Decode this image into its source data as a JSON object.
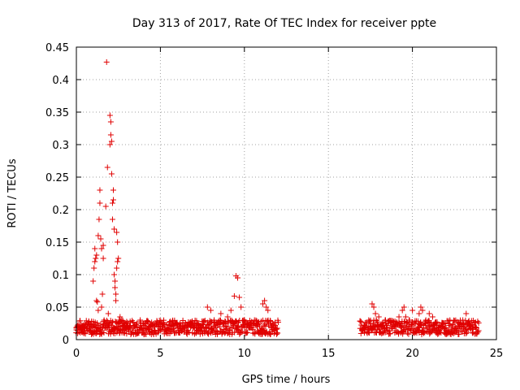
{
  "chart_data": {
    "type": "scatter",
    "title": "Day 313 of 2017, Rate Of TEC Index for receiver ppte",
    "xlabel": "GPS time / hours",
    "ylabel": "ROTI / TECUs",
    "xlim": [
      0,
      25
    ],
    "ylim": [
      0,
      0.45
    ],
    "xticks": [
      0,
      5,
      10,
      15,
      20,
      25
    ],
    "xtick_labels": [
      "0",
      "5",
      "10",
      "15",
      "20",
      "25"
    ],
    "yticks": [
      0,
      0.05,
      0.1,
      0.15,
      0.2,
      0.25,
      0.3,
      0.35,
      0.4,
      0.45
    ],
    "ytick_labels": [
      "0",
      "0.05",
      "0.1",
      "0.15",
      "0.2",
      "0.25",
      "0.3",
      "0.35",
      "0.4",
      "0.45"
    ],
    "grid": true,
    "legend": "none",
    "marker": "plus",
    "color": "#e00000",
    "series": [
      {
        "x": [
          0.0,
          0.1,
          0.2,
          0.3,
          0.4,
          0.5,
          0.6,
          0.7,
          0.8,
          0.9,
          1.0,
          1.0,
          1.05,
          1.1,
          1.1,
          1.15,
          1.2,
          1.2,
          1.25,
          1.3,
          1.3,
          1.35,
          1.4,
          1.4,
          1.45,
          1.5,
          1.5,
          1.55,
          1.6,
          1.6,
          1.65,
          1.7,
          1.75,
          1.8,
          1.85,
          1.9,
          1.95,
          2.0,
          2.0,
          2.05,
          2.05,
          2.1,
          2.1,
          2.15,
          2.15,
          2.2,
          2.2,
          2.25,
          2.25,
          2.3,
          2.3,
          2.35,
          2.35,
          2.4,
          2.4,
          2.45,
          2.45,
          2.5,
          2.5,
          2.55,
          2.6,
          2.6,
          2.7,
          2.8,
          2.9,
          3.0,
          3.2,
          3.4,
          3.6,
          3.8,
          4.0,
          4.2,
          4.4,
          4.6,
          4.8,
          5.0,
          5.2,
          5.4,
          5.6,
          5.8,
          6.0,
          6.2,
          6.4,
          6.6,
          6.8,
          7.0,
          7.2,
          7.4,
          7.6,
          7.8,
          8.0,
          8.2,
          8.4,
          8.6,
          8.8,
          9.0,
          9.2,
          9.4,
          9.5,
          9.6,
          9.7,
          9.8,
          10.0,
          10.2,
          10.4,
          10.6,
          10.8,
          11.0,
          11.1,
          11.2,
          11.3,
          11.4,
          11.6,
          11.8,
          17.0,
          17.2,
          17.4,
          17.6,
          17.7,
          17.8,
          18.0,
          18.2,
          18.4,
          18.6,
          18.8,
          19.0,
          19.2,
          19.4,
          19.5,
          19.6,
          19.8,
          20.0,
          20.2,
          20.4,
          20.5,
          20.6,
          20.8,
          21.0,
          21.2,
          21.4,
          21.6,
          21.8,
          22.0,
          22.2,
          22.4,
          22.6,
          22.8,
          23.0,
          23.2,
          23.4,
          23.6,
          23.8
        ],
        "y": [
          0.015,
          0.02,
          0.018,
          0.016,
          0.022,
          0.019,
          0.017,
          0.024,
          0.02,
          0.028,
          0.02,
          0.09,
          0.11,
          0.12,
          0.14,
          0.125,
          0.13,
          0.06,
          0.058,
          0.045,
          0.16,
          0.185,
          0.21,
          0.23,
          0.155,
          0.14,
          0.05,
          0.07,
          0.145,
          0.125,
          0.03,
          0.025,
          0.205,
          0.427,
          0.265,
          0.04,
          0.025,
          0.3,
          0.345,
          0.335,
          0.315,
          0.305,
          0.255,
          0.185,
          0.21,
          0.215,
          0.23,
          0.17,
          0.1,
          0.09,
          0.08,
          0.07,
          0.06,
          0.11,
          0.165,
          0.15,
          0.12,
          0.125,
          0.02,
          0.03,
          0.035,
          0.025,
          0.03,
          0.022,
          0.025,
          0.02,
          0.028,
          0.018,
          0.025,
          0.03,
          0.022,
          0.018,
          0.024,
          0.02,
          0.026,
          0.02,
          0.024,
          0.018,
          0.02,
          0.022,
          0.026,
          0.02,
          0.018,
          0.022,
          0.019,
          0.02,
          0.024,
          0.022,
          0.028,
          0.05,
          0.045,
          0.03,
          0.025,
          0.04,
          0.025,
          0.035,
          0.045,
          0.067,
          0.098,
          0.095,
          0.065,
          0.05,
          0.03,
          0.025,
          0.022,
          0.03,
          0.025,
          0.028,
          0.055,
          0.06,
          0.05,
          0.045,
          0.018,
          0.015,
          0.015,
          0.02,
          0.03,
          0.055,
          0.05,
          0.04,
          0.035,
          0.025,
          0.03,
          0.028,
          0.02,
          0.025,
          0.035,
          0.045,
          0.05,
          0.035,
          0.03,
          0.045,
          0.025,
          0.04,
          0.05,
          0.045,
          0.03,
          0.04,
          0.035,
          0.025,
          0.022,
          0.02,
          0.018,
          0.022,
          0.02,
          0.018,
          0.02,
          0.03,
          0.04,
          0.025,
          0.02,
          0.018
        ],
        "band_min": [
          0.005,
          0.005,
          0.005,
          0.005,
          0.005,
          0.005,
          0.005,
          0.005,
          0.005,
          0.005,
          0.01,
          0.01,
          0.01,
          0.01,
          0.01,
          0.01,
          0.01,
          0.01,
          0.01,
          0.01,
          0.01,
          0.01,
          0.01,
          0.01,
          0.01,
          0.01,
          0.01,
          0.01,
          0.01,
          0.01,
          0.01,
          0.01,
          0.01,
          0.01,
          0.01,
          0.01,
          0.01,
          0.01,
          0.01,
          0.01,
          0.01,
          0.01,
          0.01,
          0.01,
          0.01,
          0.01,
          0.01,
          0.01,
          0.01,
          0.01,
          0.01,
          0.01,
          0.01,
          0.01,
          0.01,
          0.01,
          0.01,
          0.01,
          0.01,
          0.01,
          0.01,
          0.01,
          0.01,
          0.01,
          0.01,
          0.01,
          0.008,
          0.008,
          0.008,
          0.008,
          0.008,
          0.008,
          0.008,
          0.008,
          0.008,
          0.008,
          0.008,
          0.008,
          0.008,
          0.008,
          0.008,
          0.008,
          0.008,
          0.008,
          0.008,
          0.008,
          0.008,
          0.01,
          0.01,
          0.01,
          0.01,
          0.01,
          0.01,
          0.01,
          0.01,
          0.01,
          0.01,
          0.01,
          0.01,
          0.01,
          0.01,
          0.01,
          0.01,
          0.01,
          0.01,
          0.01,
          0.01,
          0.01,
          0.01,
          0.01,
          0.01,
          0.01,
          0.008,
          0.008,
          0.006,
          0.006,
          0.006,
          0.006,
          0.006,
          0.006,
          0.006,
          0.006,
          0.006,
          0.006,
          0.006,
          0.006,
          0.006,
          0.006,
          0.006,
          0.006,
          0.006,
          0.006,
          0.006,
          0.006,
          0.006,
          0.006,
          0.006,
          0.006,
          0.006,
          0.006,
          0.006,
          0.006,
          0.006,
          0.006,
          0.006,
          0.006,
          0.006,
          0.006,
          0.006,
          0.006,
          0.006,
          0.006,
          0.006,
          0.006
        ]
      }
    ],
    "dense_bands": [
      {
        "x_from": 0.0,
        "x_to": 12.0,
        "y_from": 0.008,
        "y_to": 0.03
      },
      {
        "x_from": 16.9,
        "x_to": 23.9,
        "y_from": 0.008,
        "y_to": 0.03
      }
    ]
  }
}
